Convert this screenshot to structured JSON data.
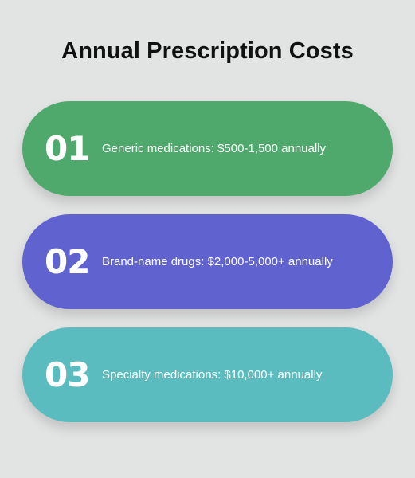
{
  "title": "Annual Prescription Costs",
  "colors": {
    "background": "#e2e3e3",
    "item_1": "#4fa96d",
    "item_2": "#5f62cf",
    "item_3": "#5bbcbf"
  },
  "items": [
    {
      "number": "01",
      "label": "Generic medications: $500-1,500 annually"
    },
    {
      "number": "02",
      "label": "Brand-name drugs: $2,000-5,000+ annually"
    },
    {
      "number": "03",
      "label": "Specialty medications: $10,000+ annually"
    }
  ]
}
